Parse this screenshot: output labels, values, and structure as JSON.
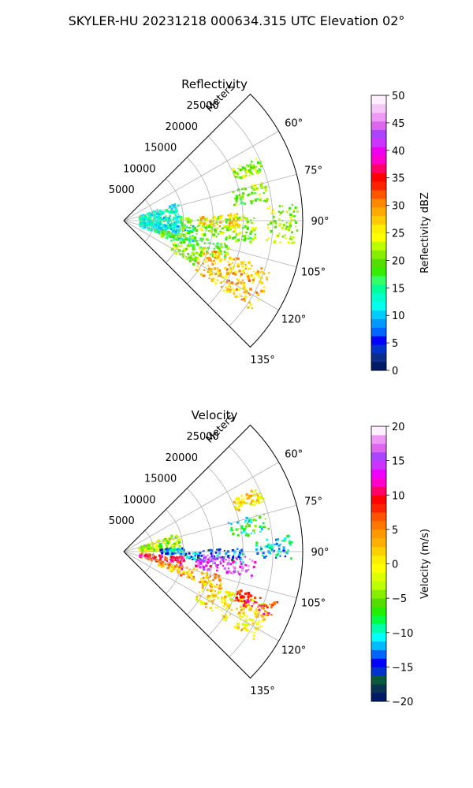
{
  "suptitle": "SKYLER-HU  20231218  000634.315 UTC Elevation 02°",
  "chart_data": [
    {
      "type": "heatmap",
      "title": "Reflectivity",
      "range_axis_label": "Meters",
      "range_ticks": [
        5000,
        10000,
        15000,
        20000,
        25000
      ],
      "range_max": 30000,
      "azimuth_ticks": [
        "60°",
        "75°",
        "90°",
        "105°",
        "120°",
        "135°"
      ],
      "azimuth_tick_values": [
        60,
        75,
        90,
        105,
        120,
        135
      ],
      "azimuth_range": [
        45,
        135
      ],
      "grid": true,
      "colorbar": {
        "label": "Reflectivity dBZ",
        "min": 0,
        "max": 50,
        "ticks": [
          "0",
          "5",
          "10",
          "15",
          "20",
          "25",
          "30",
          "35",
          "40",
          "45",
          "50"
        ],
        "tick_values": [
          0,
          5,
          10,
          15,
          20,
          25,
          30,
          35,
          40,
          45,
          50
        ],
        "colors": [
          "#001a66",
          "#0a2e8a",
          "#0033cc",
          "#0000ff",
          "#0066ff",
          "#0099ff",
          "#00ccff",
          "#00ffee",
          "#00ffcc",
          "#00ff99",
          "#33ff66",
          "#33ee00",
          "#55dd00",
          "#88ee00",
          "#bbff00",
          "#ffff00",
          "#ffee00",
          "#ffcc00",
          "#ffaa00",
          "#ff8800",
          "#ff5500",
          "#ff2200",
          "#ff0000",
          "#ff0066",
          "#ff00cc",
          "#ee00ee",
          "#cc33ff",
          "#aa44ff",
          "#dd66ee",
          "#ee99f5",
          "#f5c8fa",
          "#fff0ff"
        ]
      },
      "echo_regions": [
        {
          "az": [
            70,
            100
          ],
          "r": [
            2500,
            9500
          ],
          "value": 13
        },
        {
          "az": [
            93,
            108
          ],
          "r": [
            2500,
            12000
          ],
          "value": 12
        },
        {
          "az": [
            87,
            100
          ],
          "r": [
            9500,
            22000
          ],
          "value": 21
        },
        {
          "az": [
            86,
            93
          ],
          "r": [
            12000,
            20000
          ],
          "value": 26
        },
        {
          "az": [
            74,
            82
          ],
          "r": [
            18000,
            24500
          ],
          "value": 20
        },
        {
          "az": [
            84,
            98
          ],
          "r": [
            24000,
            29000
          ],
          "value": 22
        },
        {
          "az": [
            102,
            112
          ],
          "r": [
            6000,
            18000
          ],
          "value": 19
        },
        {
          "az": [
            108,
            125
          ],
          "r": [
            14000,
            26000
          ],
          "value": 28
        },
        {
          "az": [
            113,
            122
          ],
          "r": [
            9000,
            14000
          ],
          "value": 21
        },
        {
          "az": [
            64,
            70
          ],
          "r": [
            20000,
            25000
          ],
          "value": 21
        }
      ]
    },
    {
      "type": "heatmap",
      "title": "Velocity",
      "range_axis_label": "Meters",
      "range_ticks": [
        5000,
        10000,
        15000,
        20000,
        25000
      ],
      "range_max": 30000,
      "azimuth_ticks": [
        "60°",
        "75°",
        "90°",
        "105°",
        "120°",
        "135°"
      ],
      "azimuth_tick_values": [
        60,
        75,
        90,
        105,
        120,
        135
      ],
      "azimuth_range": [
        45,
        135
      ],
      "grid": true,
      "colorbar": {
        "label": "Velocity (m/s)",
        "min": -20,
        "max": 20,
        "ticks": [
          "−20",
          "−15",
          "−10",
          "−5",
          "0",
          "5",
          "10",
          "15",
          "20"
        ],
        "tick_values": [
          -20,
          -15,
          -10,
          -5,
          0,
          5,
          10,
          15,
          20
        ],
        "colors": [
          "#001a66",
          "#0a3350",
          "#0a5a3a",
          "#0033cc",
          "#0000ff",
          "#0066ff",
          "#00bbff",
          "#00ffff",
          "#00ffaa",
          "#00ff44",
          "#22ee00",
          "#55dd00",
          "#88ee00",
          "#bbff00",
          "#ddff00",
          "#ffff00",
          "#ffee00",
          "#ffd000",
          "#ffb000",
          "#ff9900",
          "#ff7700",
          "#ff5500",
          "#ff2200",
          "#ff0000",
          "#ff0066",
          "#ff00cc",
          "#ee00ff",
          "#cc33ff",
          "#aa44ff",
          "#dd66ee",
          "#ee99f5",
          "#fff0ff"
        ]
      },
      "echo_regions": [
        {
          "az": [
            70,
            88
          ],
          "r": [
            2500,
            9500
          ],
          "value": -3
        },
        {
          "az": [
            85,
            92
          ],
          "r": [
            6000,
            10000
          ],
          "value": -12
        },
        {
          "az": [
            94,
            106
          ],
          "r": [
            2500,
            10000
          ],
          "value": 9
        },
        {
          "az": [
            88,
            96
          ],
          "r": [
            10000,
            20000
          ],
          "value": -13
        },
        {
          "az": [
            92,
            102
          ],
          "r": [
            12000,
            22000
          ],
          "value": 15
        },
        {
          "az": [
            74,
            82
          ],
          "r": [
            18000,
            24500
          ],
          "value": -8
        },
        {
          "az": [
            84,
            92
          ],
          "r": [
            22000,
            28000
          ],
          "value": -11
        },
        {
          "az": [
            103,
            112
          ],
          "r": [
            6000,
            17000
          ],
          "value": 3
        },
        {
          "az": [
            110,
            124
          ],
          "r": [
            14000,
            26000
          ],
          "value": 1
        },
        {
          "az": [
            108,
            114
          ],
          "r": [
            20000,
            27000
          ],
          "value": 8
        },
        {
          "az": [
            64,
            70
          ],
          "r": [
            20000,
            25000
          ],
          "value": 1
        }
      ]
    }
  ]
}
